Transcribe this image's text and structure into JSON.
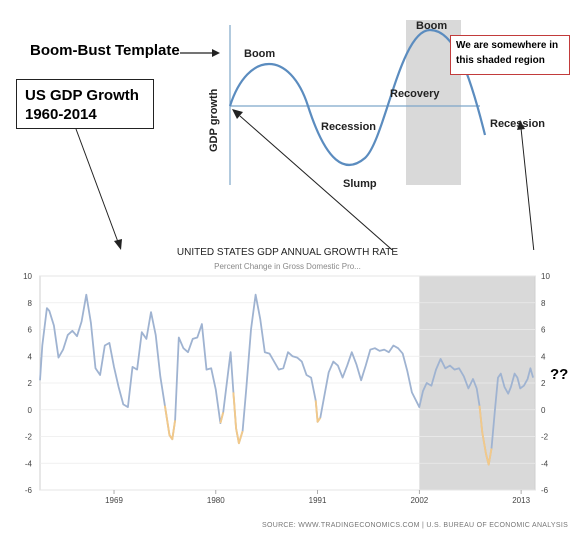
{
  "template": {
    "heading": "Boom-Bust Template",
    "y_label": "GDP growth",
    "labels": {
      "boom1": "Boom",
      "recession1": "Recession",
      "slump": "Slump",
      "recovery": "Recovery",
      "boom2": "Boom",
      "recession2": "Recession"
    },
    "note": "We are somewhere in this shaded region"
  },
  "us_box": {
    "line1": "US GDP Growth",
    "line2": "1960-2014"
  },
  "question_marks": "??",
  "colors": {
    "series": "#9fb3d1",
    "recession_highlight": "#f2c98a",
    "shade": "#d9d9d9",
    "note_border": "#c23b3b"
  },
  "chart_data": {
    "type": "line",
    "title": "UNITED STATES GDP ANNUAL GROWTH RATE",
    "subtitle": "Percent Change in Gross Domestic Pro...",
    "source": "SOURCE: WWW.TRADINGECONOMICS.COM | U.S. BUREAU OF ECONOMIC ANALYSIS",
    "xlim": [
      1961,
      2014.5
    ],
    "ylim": [
      -6,
      10
    ],
    "x_ticks": [
      1969,
      1980,
      1991,
      2002,
      2013
    ],
    "y_ticks": [
      -6,
      -4,
      -2,
      0,
      2,
      4,
      6,
      8,
      10
    ],
    "shaded_region": [
      2002,
      2014.5
    ],
    "series": [
      {
        "values": [
          [
            1961.0,
            2.2
          ],
          [
            1961.25,
            4.8
          ],
          [
            1961.5,
            6.2
          ],
          [
            1961.75,
            7.6
          ],
          [
            1962.0,
            7.4
          ],
          [
            1962.5,
            6.3
          ],
          [
            1963.0,
            3.9
          ],
          [
            1963.5,
            4.5
          ],
          [
            1964.0,
            5.6
          ],
          [
            1964.5,
            5.9
          ],
          [
            1965.0,
            5.5
          ],
          [
            1965.5,
            6.6
          ],
          [
            1966.0,
            8.6
          ],
          [
            1966.5,
            6.5
          ],
          [
            1967.0,
            3.1
          ],
          [
            1967.5,
            2.6
          ],
          [
            1968.0,
            4.8
          ],
          [
            1968.5,
            5.0
          ],
          [
            1969.0,
            3.2
          ],
          [
            1969.5,
            1.7
          ],
          [
            1970.0,
            0.4
          ],
          [
            1970.5,
            0.2
          ],
          [
            1971.0,
            3.2
          ],
          [
            1971.5,
            3.0
          ],
          [
            1972.0,
            5.8
          ],
          [
            1972.5,
            5.3
          ],
          [
            1973.0,
            7.3
          ],
          [
            1973.5,
            5.6
          ],
          [
            1974.0,
            2.5
          ],
          [
            1974.5,
            0.3
          ],
          [
            1975.0,
            -1.9
          ],
          [
            1975.3,
            -2.2
          ],
          [
            1975.6,
            -0.8
          ],
          [
            1976.0,
            5.4
          ],
          [
            1976.5,
            4.6
          ],
          [
            1977.0,
            4.3
          ],
          [
            1977.5,
            5.3
          ],
          [
            1978.0,
            5.4
          ],
          [
            1978.5,
            6.4
          ],
          [
            1979.0,
            3.0
          ],
          [
            1979.5,
            3.1
          ],
          [
            1980.0,
            1.5
          ],
          [
            1980.5,
            -1.0
          ],
          [
            1980.8,
            -0.2
          ],
          [
            1981.3,
            2.6
          ],
          [
            1981.6,
            4.3
          ],
          [
            1981.9,
            1.3
          ],
          [
            1982.2,
            -1.4
          ],
          [
            1982.5,
            -2.5
          ],
          [
            1982.9,
            -1.6
          ],
          [
            1983.3,
            1.6
          ],
          [
            1983.8,
            6.0
          ],
          [
            1984.3,
            8.6
          ],
          [
            1984.8,
            6.8
          ],
          [
            1985.3,
            4.3
          ],
          [
            1985.8,
            4.2
          ],
          [
            1986.3,
            3.6
          ],
          [
            1986.8,
            3.0
          ],
          [
            1987.3,
            3.1
          ],
          [
            1987.8,
            4.3
          ],
          [
            1988.3,
            4.0
          ],
          [
            1988.8,
            3.9
          ],
          [
            1989.3,
            3.6
          ],
          [
            1989.8,
            2.6
          ],
          [
            1990.3,
            2.4
          ],
          [
            1990.8,
            0.7
          ],
          [
            1991.0,
            -0.9
          ],
          [
            1991.3,
            -0.6
          ],
          [
            1991.7,
            0.9
          ],
          [
            1992.2,
            2.8
          ],
          [
            1992.7,
            3.6
          ],
          [
            1993.2,
            3.3
          ],
          [
            1993.7,
            2.4
          ],
          [
            1994.2,
            3.3
          ],
          [
            1994.7,
            4.3
          ],
          [
            1995.2,
            3.4
          ],
          [
            1995.7,
            2.2
          ],
          [
            1996.2,
            3.3
          ],
          [
            1996.7,
            4.5
          ],
          [
            1997.2,
            4.6
          ],
          [
            1997.7,
            4.4
          ],
          [
            1998.2,
            4.5
          ],
          [
            1998.7,
            4.3
          ],
          [
            1999.2,
            4.8
          ],
          [
            1999.7,
            4.6
          ],
          [
            2000.2,
            4.2
          ],
          [
            2000.7,
            2.9
          ],
          [
            2001.2,
            1.3
          ],
          [
            2001.7,
            0.6
          ],
          [
            2002.0,
            0.2
          ],
          [
            2002.4,
            1.4
          ],
          [
            2002.8,
            2.0
          ],
          [
            2003.3,
            1.8
          ],
          [
            2003.8,
            3.0
          ],
          [
            2004.3,
            3.8
          ],
          [
            2004.8,
            3.1
          ],
          [
            2005.3,
            3.3
          ],
          [
            2005.8,
            3.0
          ],
          [
            2006.3,
            3.1
          ],
          [
            2006.8,
            2.5
          ],
          [
            2007.3,
            1.6
          ],
          [
            2007.8,
            2.3
          ],
          [
            2008.2,
            1.6
          ],
          [
            2008.5,
            0.3
          ],
          [
            2008.8,
            -1.7
          ],
          [
            2009.2,
            -3.3
          ],
          [
            2009.5,
            -4.1
          ],
          [
            2009.8,
            -2.9
          ],
          [
            2010.2,
            0.2
          ],
          [
            2010.5,
            2.4
          ],
          [
            2010.8,
            2.7
          ],
          [
            2011.2,
            1.7
          ],
          [
            2011.6,
            1.2
          ],
          [
            2011.9,
            1.7
          ],
          [
            2012.3,
            2.7
          ],
          [
            2012.6,
            2.4
          ],
          [
            2012.9,
            1.6
          ],
          [
            2013.3,
            1.8
          ],
          [
            2013.7,
            2.3
          ],
          [
            2014.0,
            3.1
          ],
          [
            2014.3,
            2.4
          ]
        ]
      }
    ],
    "highlight_ranges": [
      [
        1974.5,
        1975.6
      ],
      [
        1980.3,
        1980.8
      ],
      [
        1981.9,
        1983.0
      ],
      [
        1990.8,
        1991.3
      ],
      [
        2008.5,
        2009.8
      ]
    ]
  }
}
